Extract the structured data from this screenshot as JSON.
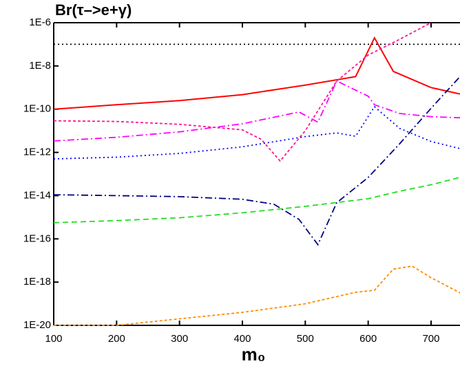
{
  "chart_data": {
    "type": "line",
    "title": "Br(τ–>e+γ)",
    "x_label": "m₀",
    "log_y": true,
    "xlim": [
      100,
      746
    ],
    "ylim": [
      1e-20,
      1e-06
    ],
    "xticks": [
      100,
      200,
      300,
      400,
      500,
      600,
      700
    ],
    "yticks": [
      {
        "value": 1e-20,
        "label": "1E-20"
      },
      {
        "value": 1e-18,
        "label": "1E-18"
      },
      {
        "value": 1e-16,
        "label": "1E-16"
      },
      {
        "value": 1e-14,
        "label": "1E-14"
      },
      {
        "value": 1e-12,
        "label": "1E-12"
      },
      {
        "value": 1e-10,
        "label": "1E-10"
      },
      {
        "value": 1e-08,
        "label": "1E-8"
      },
      {
        "value": 1e-06,
        "label": "1E-6"
      }
    ],
    "series": [
      {
        "color": "#000000",
        "dash": "dotted",
        "x": [
          100,
          746
        ],
        "values": [
          1e-07,
          1e-07
        ]
      },
      {
        "color": "#ff0000",
        "dash": "solid",
        "x": [
          100,
          200,
          300,
          400,
          500,
          580,
          610,
          640,
          700,
          746
        ],
        "values": [
          1e-10,
          1.6e-10,
          2.5e-10,
          4.7e-10,
          1.3e-09,
          3.2e-09,
          2e-07,
          5.6e-09,
          1e-09,
          5e-10
        ]
      },
      {
        "color": "#ff1493",
        "dash": "short",
        "x": [
          100,
          200,
          300,
          400,
          430,
          460,
          500,
          550,
          600,
          650,
          700
        ],
        "values": [
          2.9e-11,
          2.7e-11,
          2e-11,
          1.1e-11,
          4e-12,
          4e-13,
          1e-11,
          2e-09,
          3.2e-08,
          1.7e-07,
          1e-06
        ]
      },
      {
        "color": "#ff00ff",
        "dash": "dashdot",
        "x": [
          100,
          200,
          300,
          400,
          490,
          520,
          550,
          600,
          610,
          650,
          700,
          746
        ],
        "values": [
          3.4e-12,
          5e-12,
          8.9e-12,
          2.1e-11,
          7.4e-11,
          2.5e-11,
          2e-09,
          4e-10,
          1.6e-10,
          6.3e-11,
          4.5e-11,
          4e-11
        ]
      },
      {
        "color": "#0000ff",
        "dash": "dotted",
        "x": [
          100,
          200,
          300,
          400,
          500,
          550,
          580,
          610,
          650,
          700,
          746
        ],
        "values": [
          5e-13,
          6e-13,
          9e-13,
          1.8e-12,
          5.4e-12,
          8e-12,
          5.6e-12,
          1.3e-10,
          1.3e-11,
          3.2e-12,
          1.5e-12
        ]
      },
      {
        "color": "#000080",
        "dash": "dashdot",
        "x": [
          100,
          200,
          300,
          400,
          450,
          490,
          520,
          550,
          600,
          650,
          700,
          746
        ],
        "values": [
          1.1e-14,
          1e-14,
          9e-15,
          6.8e-15,
          4e-15,
          8e-16,
          5.4e-17,
          4.7e-15,
          7e-14,
          2.5e-12,
          1.1e-10,
          3.2e-09
        ]
      },
      {
        "color": "#22dd22",
        "dash": "dashed",
        "x": [
          100,
          200,
          300,
          400,
          500,
          600,
          650,
          700,
          746
        ],
        "values": [
          5.6e-16,
          7e-16,
          9.5e-16,
          1.6e-15,
          3.2e-15,
          7.2e-15,
          1.6e-14,
          3.2e-14,
          7e-14
        ]
      },
      {
        "color": "#ff8c00",
        "dash": "short",
        "x": [
          100,
          200,
          300,
          400,
          500,
          580,
          610,
          640,
          670,
          700,
          746
        ],
        "values": [
          1e-20,
          1e-20,
          2e-20,
          4e-20,
          1e-19,
          3.4e-19,
          4.2e-19,
          4e-18,
          5.5e-18,
          1.6e-18,
          3.2e-19
        ]
      }
    ]
  }
}
